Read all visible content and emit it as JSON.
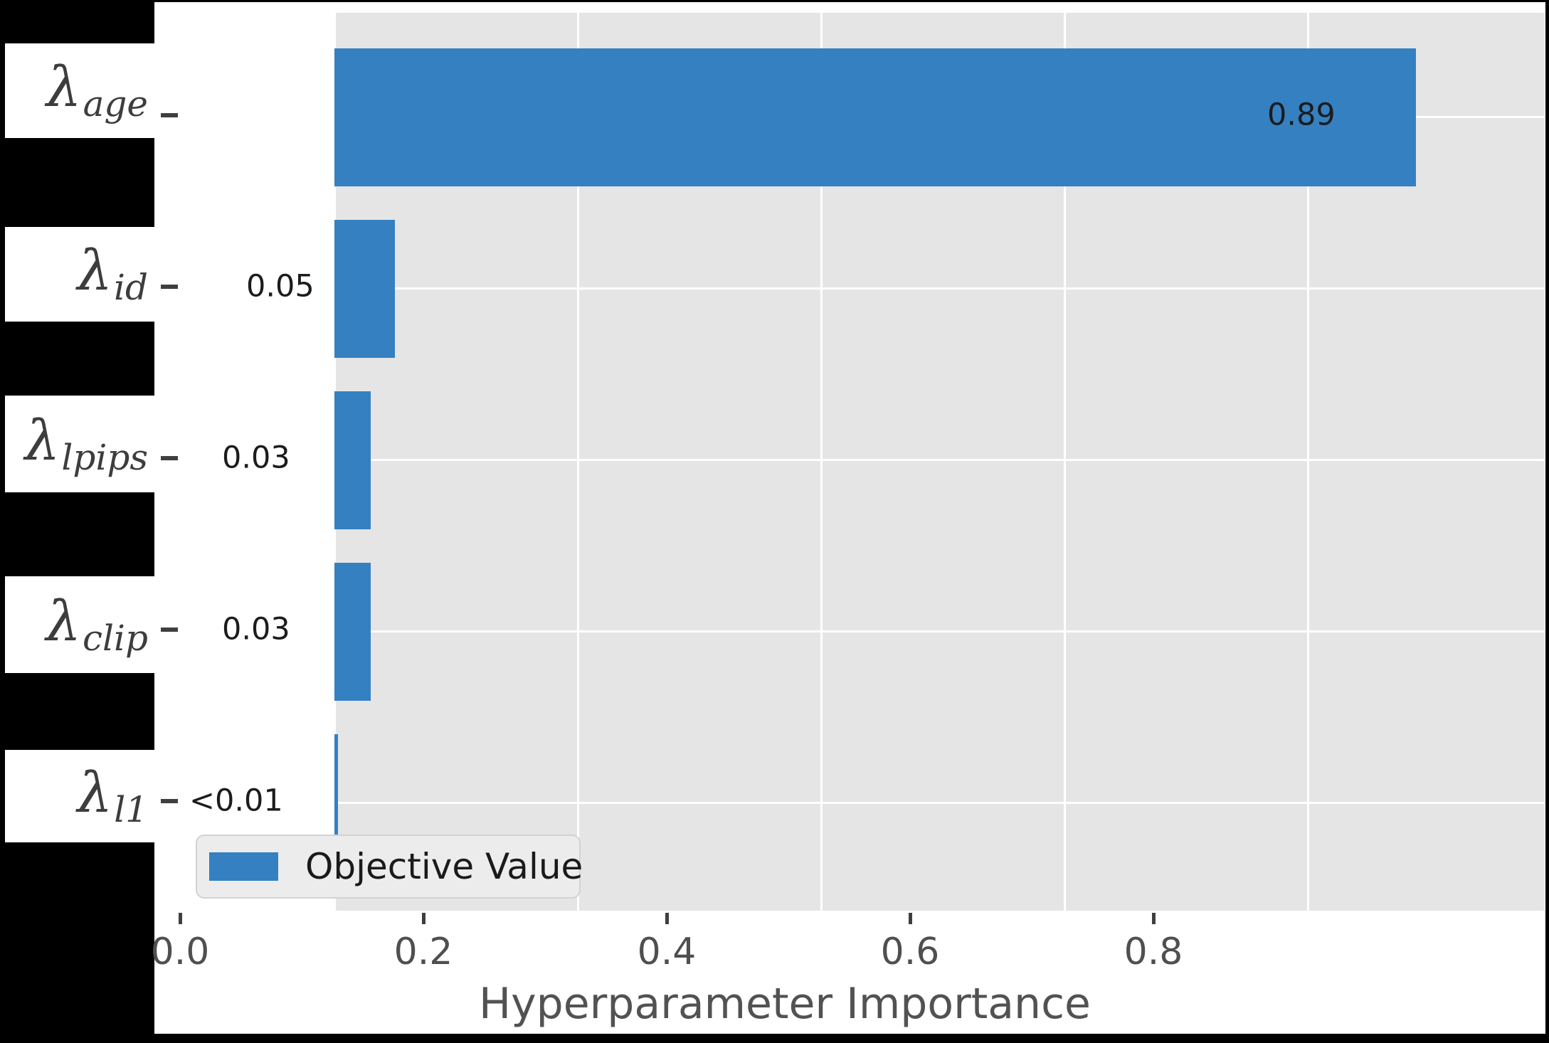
{
  "canvas": {
    "page_bg": "#000000",
    "figure_bg": "#ffffff"
  },
  "chart_data": {
    "type": "bar",
    "orientation": "horizontal",
    "title": "",
    "xlabel": "Hyperparameter Importance",
    "ylabel": "",
    "xlim": [
      0,
      1.0
    ],
    "x_tick_values": [
      0.0,
      0.2,
      0.4,
      0.6,
      0.8
    ],
    "x_ticks": [
      "0.0",
      "0.2",
      "0.4",
      "0.6",
      "0.8"
    ],
    "grid": true,
    "grid_color": "#ffffff",
    "plot_bg": "#e5e5e5",
    "bar_color": "#3580c1",
    "legend": {
      "label": "Objective Value",
      "position": "lower left"
    },
    "rows": [
      {
        "param": "lambda_age",
        "label_base": "λ",
        "label_sub": "age",
        "value": 0.89,
        "value_label": "0.89"
      },
      {
        "param": "lambda_id",
        "label_base": "λ",
        "label_sub": "id",
        "value": 0.05,
        "value_label": "0.05"
      },
      {
        "param": "lambda_lpips",
        "label_base": "λ",
        "label_sub": "lpips",
        "value": 0.03,
        "value_label": "0.03"
      },
      {
        "param": "lambda_clip",
        "label_base": "λ",
        "label_sub": "clip",
        "value": 0.03,
        "value_label": "0.03"
      },
      {
        "param": "lambda_l1",
        "label_base": "λ",
        "label_sub": "l1",
        "value": 0.003,
        "value_label": "<0.01"
      }
    ]
  }
}
